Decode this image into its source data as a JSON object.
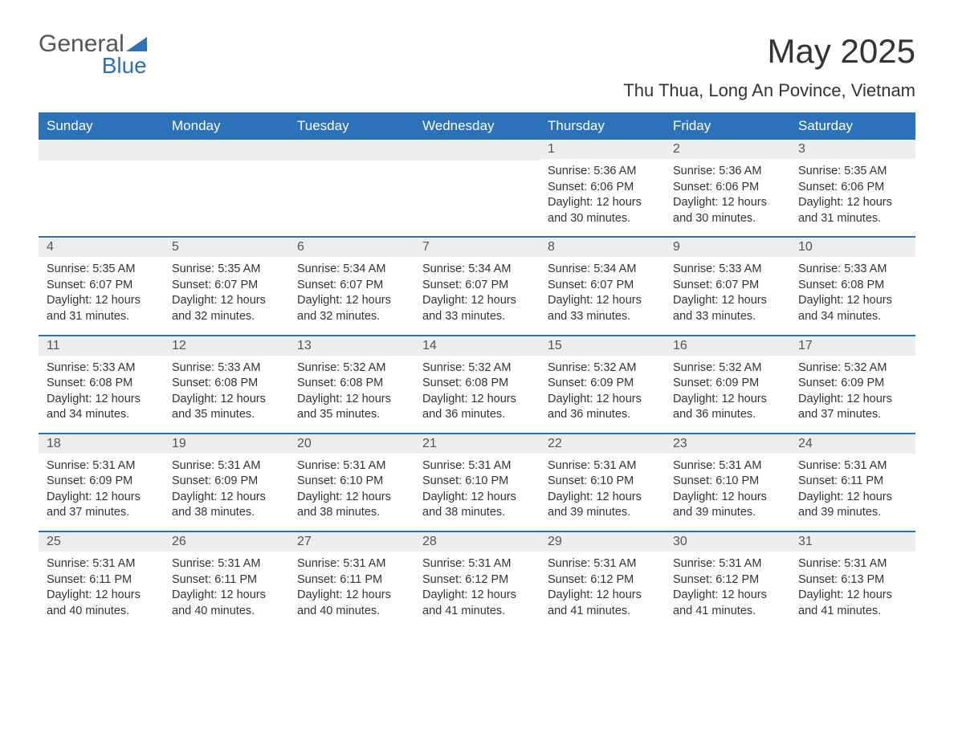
{
  "brand": {
    "word1": "General",
    "word2": "Blue",
    "word1_color": "#555555",
    "word2_color": "#2b72b9",
    "icon_color": "#2b72b9"
  },
  "title": "May 2025",
  "location": "Thu Thua, Long An Povince, Vietnam",
  "colors": {
    "header_bg": "#2b72b9",
    "header_text": "#ffffff",
    "daynum_bg": "#ededed",
    "daynum_border": "#2b72b9",
    "body_text": "#333333",
    "page_bg": "#ffffff"
  },
  "weekdays": [
    "Sunday",
    "Monday",
    "Tuesday",
    "Wednesday",
    "Thursday",
    "Friday",
    "Saturday"
  ],
  "weeks": [
    [
      {
        "day": "",
        "sunrise": "",
        "sunset": "",
        "daylight": ""
      },
      {
        "day": "",
        "sunrise": "",
        "sunset": "",
        "daylight": ""
      },
      {
        "day": "",
        "sunrise": "",
        "sunset": "",
        "daylight": ""
      },
      {
        "day": "",
        "sunrise": "",
        "sunset": "",
        "daylight": ""
      },
      {
        "day": "1",
        "sunrise": "Sunrise: 5:36 AM",
        "sunset": "Sunset: 6:06 PM",
        "daylight": "Daylight: 12 hours and 30 minutes."
      },
      {
        "day": "2",
        "sunrise": "Sunrise: 5:36 AM",
        "sunset": "Sunset: 6:06 PM",
        "daylight": "Daylight: 12 hours and 30 minutes."
      },
      {
        "day": "3",
        "sunrise": "Sunrise: 5:35 AM",
        "sunset": "Sunset: 6:06 PM",
        "daylight": "Daylight: 12 hours and 31 minutes."
      }
    ],
    [
      {
        "day": "4",
        "sunrise": "Sunrise: 5:35 AM",
        "sunset": "Sunset: 6:07 PM",
        "daylight": "Daylight: 12 hours and 31 minutes."
      },
      {
        "day": "5",
        "sunrise": "Sunrise: 5:35 AM",
        "sunset": "Sunset: 6:07 PM",
        "daylight": "Daylight: 12 hours and 32 minutes."
      },
      {
        "day": "6",
        "sunrise": "Sunrise: 5:34 AM",
        "sunset": "Sunset: 6:07 PM",
        "daylight": "Daylight: 12 hours and 32 minutes."
      },
      {
        "day": "7",
        "sunrise": "Sunrise: 5:34 AM",
        "sunset": "Sunset: 6:07 PM",
        "daylight": "Daylight: 12 hours and 33 minutes."
      },
      {
        "day": "8",
        "sunrise": "Sunrise: 5:34 AM",
        "sunset": "Sunset: 6:07 PM",
        "daylight": "Daylight: 12 hours and 33 minutes."
      },
      {
        "day": "9",
        "sunrise": "Sunrise: 5:33 AM",
        "sunset": "Sunset: 6:07 PM",
        "daylight": "Daylight: 12 hours and 33 minutes."
      },
      {
        "day": "10",
        "sunrise": "Sunrise: 5:33 AM",
        "sunset": "Sunset: 6:08 PM",
        "daylight": "Daylight: 12 hours and 34 minutes."
      }
    ],
    [
      {
        "day": "11",
        "sunrise": "Sunrise: 5:33 AM",
        "sunset": "Sunset: 6:08 PM",
        "daylight": "Daylight: 12 hours and 34 minutes."
      },
      {
        "day": "12",
        "sunrise": "Sunrise: 5:33 AM",
        "sunset": "Sunset: 6:08 PM",
        "daylight": "Daylight: 12 hours and 35 minutes."
      },
      {
        "day": "13",
        "sunrise": "Sunrise: 5:32 AM",
        "sunset": "Sunset: 6:08 PM",
        "daylight": "Daylight: 12 hours and 35 minutes."
      },
      {
        "day": "14",
        "sunrise": "Sunrise: 5:32 AM",
        "sunset": "Sunset: 6:08 PM",
        "daylight": "Daylight: 12 hours and 36 minutes."
      },
      {
        "day": "15",
        "sunrise": "Sunrise: 5:32 AM",
        "sunset": "Sunset: 6:09 PM",
        "daylight": "Daylight: 12 hours and 36 minutes."
      },
      {
        "day": "16",
        "sunrise": "Sunrise: 5:32 AM",
        "sunset": "Sunset: 6:09 PM",
        "daylight": "Daylight: 12 hours and 36 minutes."
      },
      {
        "day": "17",
        "sunrise": "Sunrise: 5:32 AM",
        "sunset": "Sunset: 6:09 PM",
        "daylight": "Daylight: 12 hours and 37 minutes."
      }
    ],
    [
      {
        "day": "18",
        "sunrise": "Sunrise: 5:31 AM",
        "sunset": "Sunset: 6:09 PM",
        "daylight": "Daylight: 12 hours and 37 minutes."
      },
      {
        "day": "19",
        "sunrise": "Sunrise: 5:31 AM",
        "sunset": "Sunset: 6:09 PM",
        "daylight": "Daylight: 12 hours and 38 minutes."
      },
      {
        "day": "20",
        "sunrise": "Sunrise: 5:31 AM",
        "sunset": "Sunset: 6:10 PM",
        "daylight": "Daylight: 12 hours and 38 minutes."
      },
      {
        "day": "21",
        "sunrise": "Sunrise: 5:31 AM",
        "sunset": "Sunset: 6:10 PM",
        "daylight": "Daylight: 12 hours and 38 minutes."
      },
      {
        "day": "22",
        "sunrise": "Sunrise: 5:31 AM",
        "sunset": "Sunset: 6:10 PM",
        "daylight": "Daylight: 12 hours and 39 minutes."
      },
      {
        "day": "23",
        "sunrise": "Sunrise: 5:31 AM",
        "sunset": "Sunset: 6:10 PM",
        "daylight": "Daylight: 12 hours and 39 minutes."
      },
      {
        "day": "24",
        "sunrise": "Sunrise: 5:31 AM",
        "sunset": "Sunset: 6:11 PM",
        "daylight": "Daylight: 12 hours and 39 minutes."
      }
    ],
    [
      {
        "day": "25",
        "sunrise": "Sunrise: 5:31 AM",
        "sunset": "Sunset: 6:11 PM",
        "daylight": "Daylight: 12 hours and 40 minutes."
      },
      {
        "day": "26",
        "sunrise": "Sunrise: 5:31 AM",
        "sunset": "Sunset: 6:11 PM",
        "daylight": "Daylight: 12 hours and 40 minutes."
      },
      {
        "day": "27",
        "sunrise": "Sunrise: 5:31 AM",
        "sunset": "Sunset: 6:11 PM",
        "daylight": "Daylight: 12 hours and 40 minutes."
      },
      {
        "day": "28",
        "sunrise": "Sunrise: 5:31 AM",
        "sunset": "Sunset: 6:12 PM",
        "daylight": "Daylight: 12 hours and 41 minutes."
      },
      {
        "day": "29",
        "sunrise": "Sunrise: 5:31 AM",
        "sunset": "Sunset: 6:12 PM",
        "daylight": "Daylight: 12 hours and 41 minutes."
      },
      {
        "day": "30",
        "sunrise": "Sunrise: 5:31 AM",
        "sunset": "Sunset: 6:12 PM",
        "daylight": "Daylight: 12 hours and 41 minutes."
      },
      {
        "day": "31",
        "sunrise": "Sunrise: 5:31 AM",
        "sunset": "Sunset: 6:13 PM",
        "daylight": "Daylight: 12 hours and 41 minutes."
      }
    ]
  ]
}
